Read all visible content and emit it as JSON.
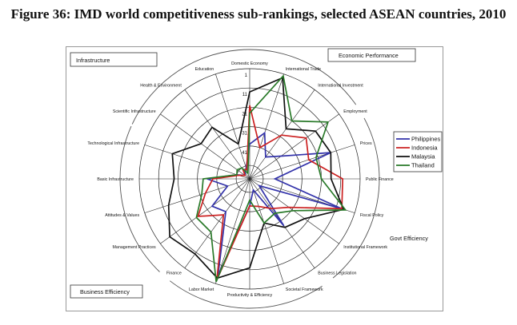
{
  "figure_title": "Figure 36: IMD world competitiveness sub-rankings, selected ASEAN countries, 2010",
  "chart_data": {
    "type": "radar",
    "title": "Figure 36: IMD world competitiveness sub-rankings, selected ASEAN countries, 2010",
    "axis_note": "Rank scale, 1 at outer ring (best), 58 at centre",
    "rlim": [
      1,
      58
    ],
    "ring_ticks": [
      1,
      11,
      21,
      31,
      41
    ],
    "tick_labels_shown": [
      "1",
      "11",
      "21",
      "31",
      "41"
    ],
    "categories": [
      "Domestic Economy",
      "International Trade",
      "International Investment",
      "Employment",
      "Prices",
      "Public Finance",
      "Fiscal Policy",
      "Institutional Framework",
      "Business Legislation",
      "Societal Framework",
      "Productivity & Efficiency",
      "Labor Market",
      "Finance",
      "Management Practices",
      "Attitudes & Values",
      "Basic Infrastructure",
      "Technological Infrastructure",
      "Scientific Infrastructure",
      "Health & Environment",
      "Education"
    ],
    "series": [
      {
        "name": "Philippines",
        "color": "#3333aa",
        "values": [
          40,
          33,
          44,
          38,
          14,
          45,
          8,
          52,
          28,
          52,
          44,
          5,
          37,
          34,
          46,
          36,
          51,
          55,
          54,
          52
        ]
      },
      {
        "name": "Indonesia",
        "color": "#cc2222",
        "values": [
          20,
          41,
          30,
          22,
          26,
          10,
          8,
          33,
          39,
          43,
          44,
          3,
          35,
          25,
          34,
          39,
          52,
          55,
          52,
          53
        ]
      },
      {
        "name": "Malaysia",
        "color": "#111111",
        "values": [
          13,
          3,
          26,
          16,
          14,
          16,
          7,
          23,
          27,
          34,
          12,
          4,
          10,
          7,
          14,
          19,
          16,
          27,
          25,
          39
        ]
      },
      {
        "name": "Thailand",
        "color": "#2a7a2a",
        "values": [
          24,
          2,
          21,
          8,
          22,
          21,
          6,
          30,
          36,
          34,
          47,
          2,
          24,
          24,
          32,
          34,
          51,
          50,
          51,
          55
        ]
      }
    ],
    "group_labels": [
      "Infrastructure",
      "Economic Performance",
      "Govt Efficiency",
      "Business Efficiency"
    ],
    "legend_position": "right"
  }
}
